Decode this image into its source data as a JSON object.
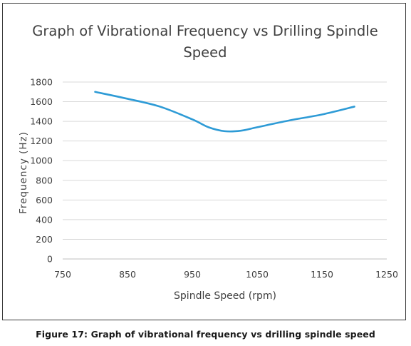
{
  "caption": "Figure 17: Graph of vibrational frequency vs drilling spindle speed",
  "chart_data": {
    "type": "line",
    "title": "Graph of Vibrational Frequency vs Drilling Spindle Speed",
    "title_lines": [
      "Graph of Vibrational Frequency vs Drilling Spindle",
      "Speed"
    ],
    "xlabel": "Spindle Speed (rpm)",
    "ylabel": "Frequency (Hz)",
    "xlim": [
      750,
      1250
    ],
    "ylim": [
      0,
      1800
    ],
    "xticks": [
      750,
      850,
      950,
      1050,
      1150,
      1250
    ],
    "yticks": [
      0,
      200,
      400,
      600,
      800,
      1000,
      1200,
      1400,
      1600,
      1800
    ],
    "grid": "horizontal",
    "legend": "none",
    "series": [
      {
        "color": "#2e9bd6",
        "x": [
          800,
          850,
          900,
          950,
          975,
          1000,
          1025,
          1050,
          1100,
          1150,
          1200
        ],
        "y": [
          1700,
          1630,
          1550,
          1420,
          1340,
          1300,
          1305,
          1340,
          1410,
          1470,
          1550
        ]
      }
    ]
  }
}
